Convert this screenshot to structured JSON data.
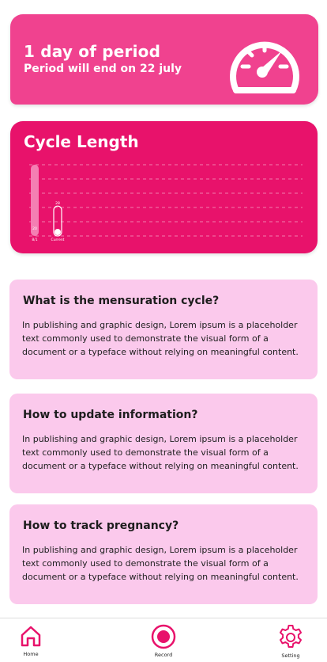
{
  "period_card": {
    "title": "1 day of period",
    "subtitle": "Period will end on 22 july",
    "icon": "speedometer-icon"
  },
  "cycle_card": {
    "title": "Cycle Length",
    "bars": [
      {
        "value_label": "20",
        "x_label": "8/1",
        "fraction": 1.0
      },
      {
        "value_label": "28",
        "x_label": "Current",
        "fraction": 0.42
      }
    ]
  },
  "faq": [
    {
      "question": "What is the mensuration cycle?",
      "answer": "In publishing and graphic design, Lorem ipsum is a placeholder text commonly used to demonstrate the visual form of a document or a typeface without relying on meaningful content."
    },
    {
      "question": "How to update information?",
      "answer": "In publishing and graphic design, Lorem ipsum is a placeholder text commonly used to demonstrate the visual form of a document or a typeface without relying on meaningful content."
    },
    {
      "question": "How to track pregnancy?",
      "answer": "In publishing and graphic design, Lorem ipsum is a placeholder text commonly used to demonstrate the visual form of a document or a typeface without relying on meaningful content."
    }
  ],
  "nav": {
    "home_label": "Home",
    "record_label": "Record",
    "setting_label": "Setting"
  },
  "colors": {
    "period_card": "#f0428f",
    "cycle_card": "#e8126b",
    "faq_card": "#fbc9ec",
    "accent": "#e8126b"
  }
}
